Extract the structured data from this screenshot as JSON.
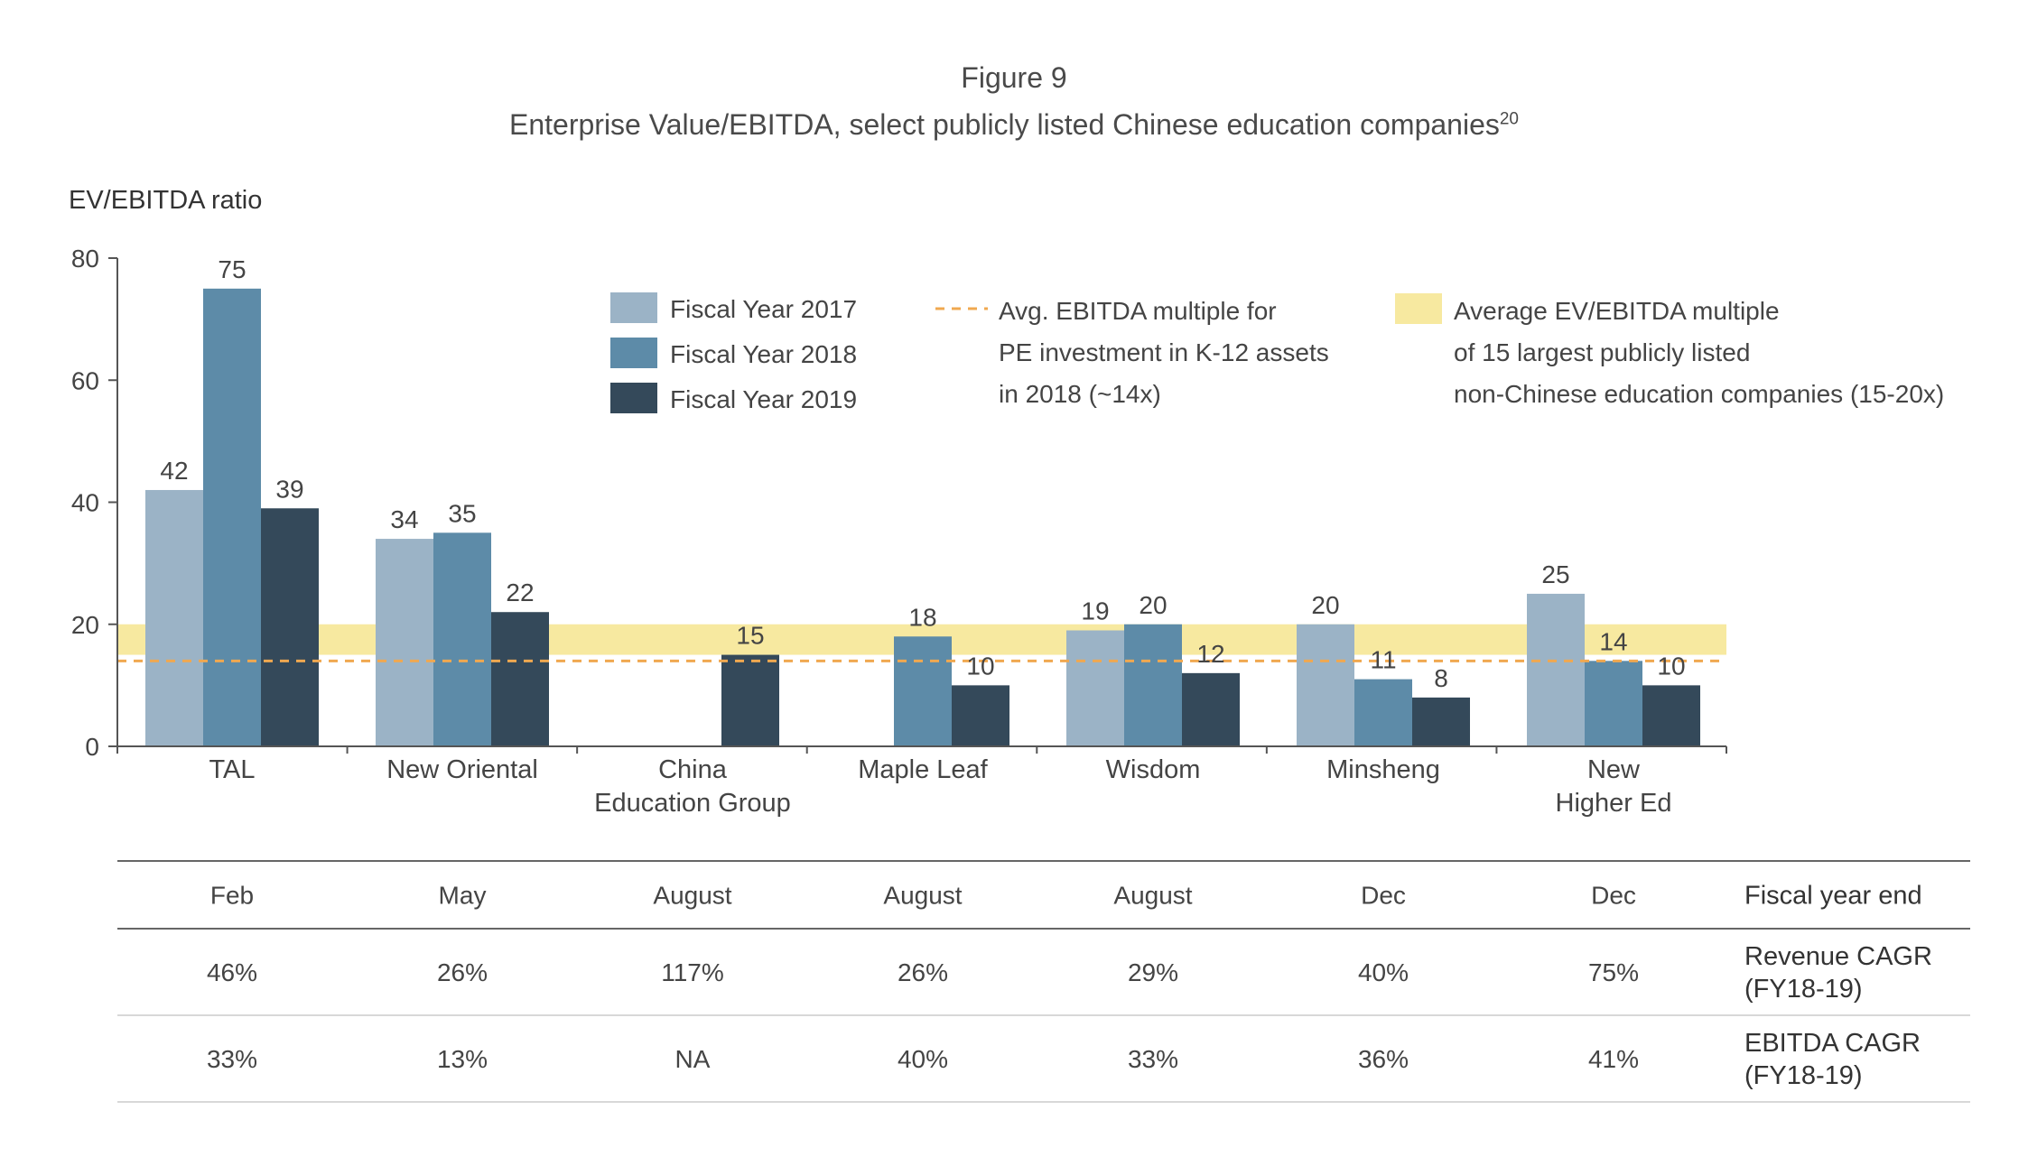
{
  "figure_label": "Figure 9",
  "figure_title": "Enterprise Value/EBITDA, select publicly listed Chinese education companies",
  "figure_title_footnote": "20",
  "chart_data": {
    "type": "bar",
    "title": "Enterprise Value/EBITDA, select publicly listed Chinese education companies",
    "ylabel": "EV/EBITDA ratio",
    "ylim": [
      0,
      80
    ],
    "yticks": [
      "0",
      "20",
      "40",
      "60",
      "80"
    ],
    "grid": false,
    "categories": [
      [
        "TAL"
      ],
      [
        "New Oriental"
      ],
      [
        "China",
        "Education Group"
      ],
      [
        "Maple Leaf"
      ],
      [
        "Wisdom"
      ],
      [
        "Minsheng"
      ],
      [
        "New",
        "Higher Ed"
      ]
    ],
    "series": [
      {
        "name": "Fiscal Year 2017",
        "color": "#9bb3c6",
        "values": [
          42,
          34,
          null,
          null,
          19,
          20,
          25
        ],
        "labels": [
          "42",
          "34",
          "",
          "",
          "19",
          "20",
          "25"
        ]
      },
      {
        "name": "Fiscal Year 2018",
        "color": "#5d8ba8",
        "values": [
          75,
          35,
          null,
          18,
          20,
          11,
          14
        ],
        "labels": [
          "75",
          "35",
          "",
          "18",
          "20",
          "11",
          "14"
        ]
      },
      {
        "name": "Fiscal Year 2019",
        "color": "#34495a",
        "values": [
          39,
          22,
          15,
          10,
          12,
          8,
          10
        ],
        "labels": [
          "39",
          "22",
          "15",
          "10",
          "12",
          "8",
          "10"
        ]
      }
    ],
    "reference_line": {
      "value": 14,
      "color": "#f0a850",
      "label": [
        "Avg. EBITDA multiple for",
        "PE investment in K-12 assets",
        "in 2018 (~14x)"
      ]
    },
    "reference_band": {
      "range": [
        15,
        20
      ],
      "color": "#f7e9a0",
      "label": [
        "Average EV/EBITDA multiple",
        "of 15 largest publicly listed",
        "non-Chinese education companies (15-20x)"
      ]
    },
    "legend_position": "top"
  },
  "table": {
    "rows": [
      {
        "header": [
          "Fiscal year end"
        ],
        "values": [
          "Feb",
          "May",
          "August",
          "August",
          "August",
          "Dec",
          "Dec"
        ]
      },
      {
        "header": [
          "Revenue CAGR",
          "(FY18-19)"
        ],
        "values": [
          "46%",
          "26%",
          "117%",
          "26%",
          "29%",
          "40%",
          "75%"
        ]
      },
      {
        "header": [
          "EBITDA CAGR",
          "(FY18-19)"
        ],
        "values": [
          "33%",
          "13%",
          "NA",
          "40%",
          "33%",
          "36%",
          "41%"
        ]
      }
    ]
  }
}
